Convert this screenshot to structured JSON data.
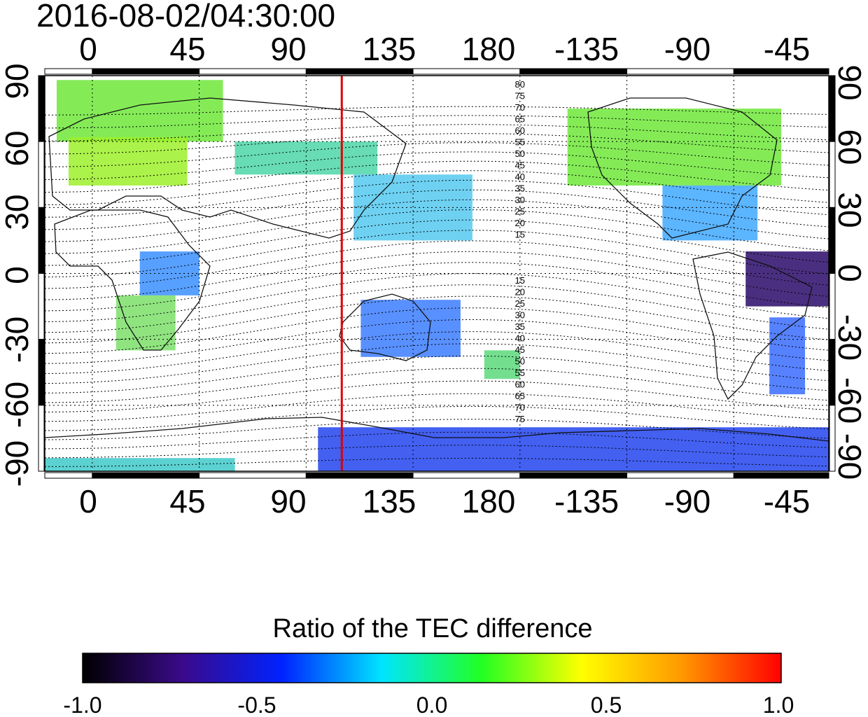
{
  "title": "2016-08-02/04:30:00",
  "colorbar": {
    "title": "Ratio of the TEC difference",
    "ticks": [
      "-1.0",
      "-0.5",
      "0.0",
      "0.5",
      "1.0"
    ],
    "colors": [
      "#000000",
      "#3a0a8a",
      "#0022ff",
      "#00e5ff",
      "#22ff22",
      "#ffff00",
      "#ff9900",
      "#ff0000"
    ]
  },
  "axes": {
    "lon_labels": [
      "0",
      "45",
      "90",
      "135",
      "180",
      "-135",
      "-90",
      "-45"
    ],
    "lat_labels": [
      "90",
      "60",
      "30",
      "0",
      "-30",
      "-60",
      "-90"
    ],
    "lon_range": [
      -20,
      310
    ],
    "lat_range": [
      -90,
      90
    ]
  },
  "marker": {
    "longitude": 105,
    "color": "#dd0000"
  },
  "contour_labels": {
    "north": [
      "80",
      "75",
      "70",
      "65",
      "60",
      "55",
      "50",
      "45",
      "40",
      "35",
      "30",
      "25",
      "20",
      "15"
    ],
    "south": [
      "15",
      "20",
      "25",
      "30",
      "35",
      "40",
      "45",
      "50",
      "55",
      "60",
      "65",
      "70",
      "75"
    ]
  },
  "regions": [
    {
      "lon0": -15,
      "lat0": 60,
      "lon1": 55,
      "lat1": 88,
      "color": "#6fe83a"
    },
    {
      "lon0": -10,
      "lat0": 40,
      "lon1": 40,
      "lat1": 62,
      "color": "#9cf02a"
    },
    {
      "lon0": 60,
      "lat0": 45,
      "lon1": 120,
      "lat1": 60,
      "color": "#4cd6a8"
    },
    {
      "lon0": 110,
      "lat0": 15,
      "lon1": 160,
      "lat1": 45,
      "color": "#55c9f0"
    },
    {
      "lon0": 20,
      "lat0": -10,
      "lon1": 45,
      "lat1": 10,
      "color": "#3a8fff"
    },
    {
      "lon0": 10,
      "lat0": -35,
      "lon1": 35,
      "lat1": -10,
      "color": "#7cdf6a"
    },
    {
      "lon0": 113,
      "lat0": -38,
      "lon1": 155,
      "lat1": -12,
      "color": "#3c7cff"
    },
    {
      "lon0": 165,
      "lat0": -48,
      "lon1": 180,
      "lat1": -35,
      "color": "#5bd97a"
    },
    {
      "lon0": 200,
      "lat0": 40,
      "lon1": 290,
      "lat1": 75,
      "color": "#6fe83a"
    },
    {
      "lon0": 240,
      "lat0": 15,
      "lon1": 280,
      "lat1": 40,
      "color": "#3fa8ff"
    },
    {
      "lon0": 275,
      "lat0": -15,
      "lon1": 315,
      "lat1": 10,
      "color": "#2a0a6a"
    },
    {
      "lon0": 285,
      "lat0": -55,
      "lon1": 300,
      "lat1": -20,
      "color": "#3a6cff"
    },
    {
      "lon0": 95,
      "lat0": -90,
      "lon1": 330,
      "lat1": -70,
      "color": "#2244ee"
    },
    {
      "lon0": -20,
      "lat0": -90,
      "lon1": 60,
      "lat1": -84,
      "color": "#40c9c9"
    }
  ]
}
